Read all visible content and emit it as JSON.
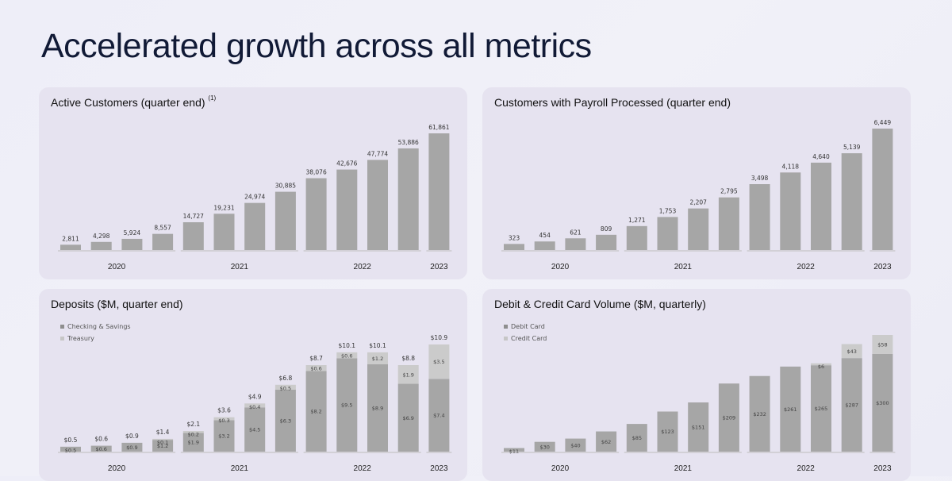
{
  "page_title": "Accelerated growth across all metrics",
  "colors": {
    "primary": "#a6a6a6",
    "secondary": "#cbcbcb",
    "axis": "#bdbdbd",
    "panel": "#e6e3f0",
    "title": "#111a36"
  },
  "chart_data": [
    {
      "type": "bar",
      "title": "Active Customers (quarter end)",
      "title_note": "(1)",
      "year_groups": [
        {
          "label": "2020",
          "count": 4
        },
        {
          "label": "2021",
          "count": 4
        },
        {
          "label": "2022",
          "count": 4
        },
        {
          "label": "2023",
          "count": 1
        }
      ],
      "values": [
        2811,
        4298,
        5924,
        8557,
        14727,
        19231,
        24974,
        30885,
        38076,
        42676,
        47774,
        53886,
        61861
      ],
      "labels": [
        "2,811",
        "4,298",
        "5,924",
        "8,557",
        "14,727",
        "19,231",
        "24,974",
        "30,885",
        "38,076",
        "42,676",
        "47,774",
        "53,886",
        "61,861"
      ]
    },
    {
      "type": "bar",
      "title": "Customers with Payroll Processed (quarter end)",
      "year_groups": [
        {
          "label": "2020",
          "count": 4
        },
        {
          "label": "2021",
          "count": 4
        },
        {
          "label": "2022",
          "count": 4
        },
        {
          "label": "2023",
          "count": 1
        }
      ],
      "values": [
        323,
        454,
        621,
        809,
        1271,
        1753,
        2207,
        2795,
        3498,
        4118,
        4640,
        5139,
        6449
      ],
      "labels": [
        "323",
        "454",
        "621",
        "809",
        "1,271",
        "1,753",
        "2,207",
        "2,795",
        "3,498",
        "4,118",
        "4,640",
        "5,139",
        "6,449"
      ]
    },
    {
      "type": "bar",
      "stacked": true,
      "title": "Deposits ($M, quarter end)",
      "year_groups": [
        {
          "label": "2020",
          "count": 4
        },
        {
          "label": "2021",
          "count": 4
        },
        {
          "label": "2022",
          "count": 4
        },
        {
          "label": "2023",
          "count": 1
        }
      ],
      "series": [
        {
          "name": "Checking & Savings",
          "values": [
            0.5,
            0.6,
            0.9,
            1.2,
            1.9,
            3.2,
            4.5,
            6.3,
            8.2,
            9.5,
            8.9,
            6.9,
            7.4
          ],
          "labels": [
            "$0.5",
            "$0.6",
            "$0.9",
            "$1.2",
            "$1.9",
            "$3.2",
            "$4.5",
            "$6.3",
            "$8.2",
            "$9.5",
            "$8.9",
            "$6.9",
            "$7.4"
          ]
        },
        {
          "name": "Treasury",
          "values": [
            0,
            0,
            0,
            0.1,
            0.2,
            0.3,
            0.4,
            0.5,
            0.6,
            0.6,
            1.2,
            1.9,
            3.5
          ],
          "labels": [
            "",
            "",
            "",
            "$0.1",
            "$0.2",
            "$0.3",
            "$0.4",
            "$0.5",
            "$0.6",
            "$0.6",
            "$1.2",
            "$1.9",
            "$3.5"
          ]
        }
      ],
      "total_values": [
        0.5,
        0.6,
        0.9,
        1.4,
        2.1,
        3.6,
        4.9,
        6.8,
        8.7,
        10.1,
        10.1,
        8.8,
        10.9
      ],
      "total_labels": [
        "$0.5",
        "$0.6",
        "$0.9",
        "$1.4",
        "$2.1",
        "$3.6",
        "$4.9",
        "$6.8",
        "$8.7",
        "$10.1",
        "$10.1",
        "$8.8",
        "$10.9"
      ],
      "legend_position": "top-left"
    },
    {
      "type": "bar",
      "stacked": true,
      "title": "Debit & Credit Card Volume ($M, quarterly)",
      "year_groups": [
        {
          "label": "2020",
          "count": 4
        },
        {
          "label": "2021",
          "count": 4
        },
        {
          "label": "2022",
          "count": 4
        },
        {
          "label": "2023",
          "count": 1
        }
      ],
      "series": [
        {
          "name": "Debit Card",
          "values": [
            11,
            30,
            40,
            62,
            85,
            123,
            151,
            209,
            232,
            261,
            265,
            287,
            300
          ],
          "labels": [
            "$11",
            "$30",
            "$40",
            "$62",
            "$85",
            "$123",
            "$151",
            "$209",
            "$232",
            "$261",
            "$265",
            "$287",
            "$300"
          ]
        },
        {
          "name": "Credit Card",
          "values": [
            0,
            0,
            0,
            0,
            0,
            0,
            0,
            0,
            0,
            0,
            6,
            43,
            58
          ],
          "labels": [
            "",
            "",
            "",
            "",
            "",
            "",
            "",
            "",
            "",
            "",
            "$6",
            "$43",
            "$58"
          ]
        }
      ],
      "legend_position": "top-left"
    }
  ]
}
